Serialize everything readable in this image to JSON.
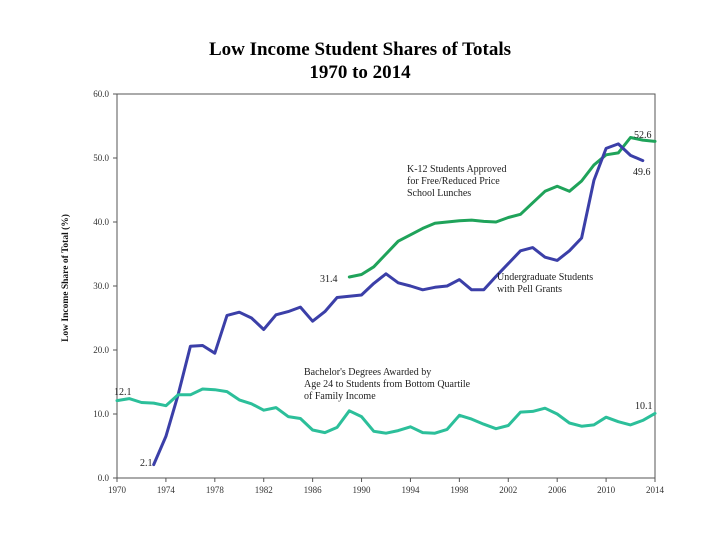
{
  "chart_data": {
    "type": "line",
    "title": "Low Income Student Shares of Totals",
    "subtitle": "1970 to 2014",
    "xlabel": "",
    "ylabel": "Low Income Share of Total (%)",
    "xlim": [
      1970,
      2014
    ],
    "ylim": [
      0,
      60
    ],
    "grid": false,
    "x_ticks": [
      1970,
      1974,
      1978,
      1982,
      1986,
      1990,
      1994,
      1998,
      2002,
      2006,
      2010,
      2014
    ],
    "x_tick_labels": [
      "1970",
      "1974",
      "1978",
      "1982",
      "1986",
      "1990",
      "1994",
      "1998",
      "2002",
      "2006",
      "2010",
      "2014"
    ],
    "y_ticks": [
      0,
      10,
      20,
      30,
      40,
      50,
      60
    ],
    "y_tick_labels": [
      "0.0",
      "10.0",
      "20.0",
      "30.0",
      "40.0",
      "50.0",
      "60.0"
    ],
    "series": [
      {
        "name": "K-12 Students Approved for Free/Reduced Price School Lunches",
        "label_lines": [
          "K-12 Students Approved",
          "for Free/Reduced Price",
          "School Lunches"
        ],
        "color": "#1fa35a",
        "x": [
          1989,
          1990,
          1991,
          1992,
          1993,
          1994,
          1995,
          1996,
          1997,
          1998,
          1999,
          2000,
          2001,
          2002,
          2003,
          2004,
          2005,
          2006,
          2007,
          2008,
          2009,
          2010,
          2011,
          2012,
          2013,
          2014
        ],
        "values": [
          31.4,
          31.8,
          33.0,
          35.0,
          37.0,
          38.0,
          39.0,
          39.8,
          40.0,
          40.2,
          40.3,
          40.1,
          40.0,
          40.7,
          41.2,
          43.0,
          44.8,
          45.6,
          44.8,
          46.4,
          48.9,
          50.5,
          50.8,
          53.2,
          52.8,
          52.6
        ],
        "start_label": "31.4",
        "end_label": "52.6"
      },
      {
        "name": "Undergraduate Students with Pell Grants",
        "label_lines": [
          "Undergraduate Students",
          "with Pell Grants"
        ],
        "color": "#3b3fa8",
        "x": [
          1973,
          1974,
          1975,
          1976,
          1977,
          1978,
          1979,
          1980,
          1981,
          1982,
          1983,
          1984,
          1985,
          1986,
          1987,
          1988,
          1989,
          1990,
          1991,
          1992,
          1993,
          1994,
          1995,
          1996,
          1997,
          1998,
          1999,
          2000,
          2001,
          2002,
          2003,
          2004,
          2005,
          2006,
          2007,
          2008,
          2009,
          2010,
          2011,
          2012,
          2013
        ],
        "values": [
          2.1,
          6.5,
          13.0,
          20.6,
          20.7,
          19.5,
          25.4,
          25.9,
          25.0,
          23.2,
          25.5,
          26.0,
          26.7,
          24.5,
          26.0,
          28.2,
          28.4,
          28.6,
          30.4,
          31.9,
          30.5,
          30.0,
          29.4,
          29.8,
          30.0,
          31.0,
          29.4,
          29.4,
          31.5,
          33.5,
          35.5,
          36.0,
          34.5,
          34.0,
          35.5,
          37.5,
          46.5,
          51.5,
          52.2,
          50.4,
          49.6
        ],
        "start_label": "2.1",
        "end_label": "49.6"
      },
      {
        "name": "Bachelor's Degrees Awarded by Age 24 to Students from Bottom Quartile of Family Income",
        "label_lines": [
          "Bachelor's Degrees Awarded by",
          "Age 24 to Students from Bottom Quartile",
          "of Family Income"
        ],
        "color": "#2cbf9a",
        "x": [
          1970,
          1971,
          1972,
          1973,
          1974,
          1975,
          1976,
          1977,
          1978,
          1979,
          1980,
          1981,
          1982,
          1983,
          1984,
          1985,
          1986,
          1987,
          1988,
          1989,
          1990,
          1991,
          1992,
          1993,
          1994,
          1995,
          1996,
          1997,
          1998,
          1999,
          2000,
          2001,
          2002,
          2003,
          2004,
          2005,
          2006,
          2007,
          2008,
          2009,
          2010,
          2011,
          2012,
          2013,
          2014
        ],
        "values": [
          12.1,
          12.4,
          11.8,
          11.7,
          11.3,
          13.0,
          13.0,
          13.9,
          13.8,
          13.5,
          12.2,
          11.6,
          10.6,
          11.0,
          9.6,
          9.3,
          7.5,
          7.1,
          7.9,
          10.5,
          9.6,
          7.3,
          7.0,
          7.4,
          8.0,
          7.1,
          7.0,
          7.6,
          9.8,
          9.2,
          8.4,
          7.7,
          8.2,
          10.3,
          10.4,
          10.9,
          10.0,
          8.6,
          8.1,
          8.3,
          9.5,
          8.8,
          8.3,
          9.0,
          10.1
        ],
        "start_label": "12.1",
        "end_label": "10.1"
      }
    ]
  }
}
